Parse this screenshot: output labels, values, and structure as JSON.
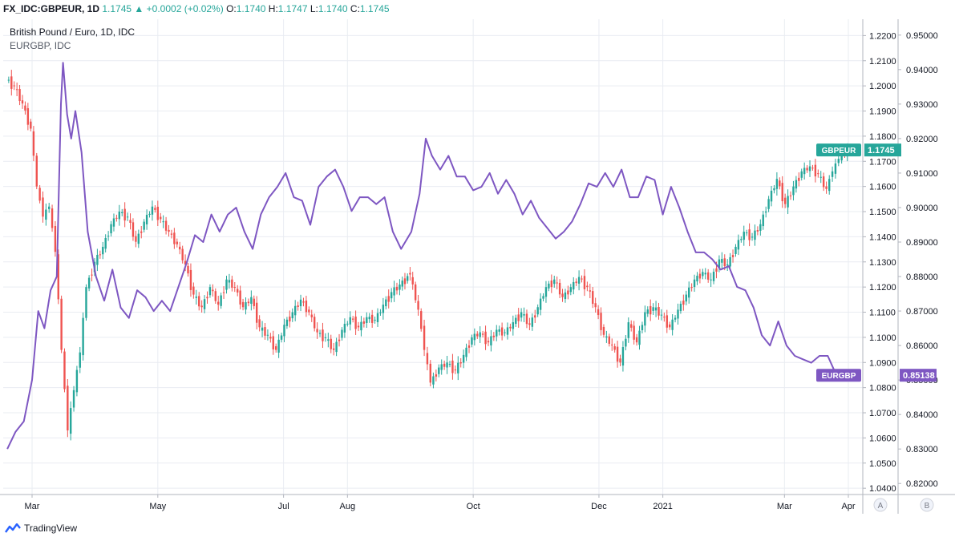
{
  "header": {
    "symbol": "FX_IDC:GBPEUR, 1D",
    "price": "1.1745",
    "arrow": "▲",
    "change": "+0.0002 (+0.02%)",
    "o_label": "O:",
    "o": "1.1740",
    "h_label": "H:",
    "h": "1.1747",
    "l_label": "L:",
    "l": "1.1740",
    "c_label": "C:",
    "c": "1.1745"
  },
  "legend": {
    "title": "British Pound / Euro, 1D, IDC",
    "overlay": "EURGBP, IDC"
  },
  "footer": {
    "brand": "TradingView"
  },
  "colors": {
    "up": "#26a69a",
    "down": "#ef5350",
    "overlay": "#7e57c2",
    "grid": "#e9ecf2",
    "axis": "#b2b5be"
  },
  "chart_data": {
    "type": "line",
    "x_labels": [
      {
        "label": "Mar",
        "date": "2020-03-01"
      },
      {
        "label": "May",
        "date": "2020-05-01"
      },
      {
        "label": "Jul",
        "date": "2020-07-01"
      },
      {
        "label": "Aug",
        "date": "2020-08-01"
      },
      {
        "label": "Oct",
        "date": "2020-10-01"
      },
      {
        "label": "Dec",
        "date": "2020-12-01"
      },
      {
        "label": "2021",
        "date": "2021-01-01"
      },
      {
        "label": "Mar",
        "date": "2021-03-01"
      },
      {
        "label": "Apr",
        "date": "2021-04-01"
      }
    ],
    "axis_a": {
      "ticks": [
        "1.2200",
        "1.2100",
        "1.2000",
        "1.1900",
        "1.1800",
        "1.1700",
        "1.1600",
        "1.1500",
        "1.1400",
        "1.1300",
        "1.1200",
        "1.1100",
        "1.1000",
        "1.0900",
        "1.0800",
        "1.0700",
        "1.0600",
        "1.0500",
        "1.0400"
      ],
      "ylim": [
        1.0375,
        1.2265
      ],
      "badge": "1.1745",
      "badge_label": "GBPEUR",
      "button": "A"
    },
    "axis_b": {
      "ticks": [
        "0.95000",
        "0.94000",
        "0.93000",
        "0.92000",
        "0.91000",
        "0.90000",
        "0.89000",
        "0.88000",
        "0.87000",
        "0.86000",
        "0.85000",
        "0.84000",
        "0.83000",
        "0.82000"
      ],
      "ylim": [
        0.8168,
        0.9546
      ],
      "badge": "0.85138",
      "badge_label": "EURGBP",
      "button": "B"
    },
    "series": [
      {
        "name": "GBPEUR",
        "kind": "candlestick",
        "axis": "A",
        "points": [
          [
            "2020-02-18",
            1.203
          ],
          [
            "2020-02-22",
            1.2
          ],
          [
            "2020-02-26",
            1.193
          ],
          [
            "2020-03-01",
            1.183
          ],
          [
            "2020-03-04",
            1.16
          ],
          [
            "2020-03-07",
            1.148
          ],
          [
            "2020-03-10",
            1.152
          ],
          [
            "2020-03-13",
            1.134
          ],
          [
            "2020-03-16",
            1.095
          ],
          [
            "2020-03-19",
            1.063
          ],
          [
            "2020-03-22",
            1.079
          ],
          [
            "2020-03-25",
            1.094
          ],
          [
            "2020-03-28",
            1.12
          ],
          [
            "2020-04-01",
            1.13
          ],
          [
            "2020-04-05",
            1.136
          ],
          [
            "2020-04-09",
            1.145
          ],
          [
            "2020-04-13",
            1.15
          ],
          [
            "2020-04-17",
            1.148
          ],
          [
            "2020-04-21",
            1.138
          ],
          [
            "2020-04-25",
            1.146
          ],
          [
            "2020-04-29",
            1.152
          ],
          [
            "2020-05-03",
            1.147
          ],
          [
            "2020-05-07",
            1.142
          ],
          [
            "2020-05-11",
            1.137
          ],
          [
            "2020-05-15",
            1.129
          ],
          [
            "2020-05-19",
            1.117
          ],
          [
            "2020-05-23",
            1.112
          ],
          [
            "2020-05-27",
            1.12
          ],
          [
            "2020-05-31",
            1.113
          ],
          [
            "2020-06-04",
            1.123
          ],
          [
            "2020-06-08",
            1.12
          ],
          [
            "2020-06-12",
            1.112
          ],
          [
            "2020-06-16",
            1.116
          ],
          [
            "2020-06-20",
            1.104
          ],
          [
            "2020-06-24",
            1.101
          ],
          [
            "2020-06-28",
            1.095
          ],
          [
            "2020-07-02",
            1.105
          ],
          [
            "2020-07-06",
            1.11
          ],
          [
            "2020-07-10",
            1.115
          ],
          [
            "2020-07-14",
            1.11
          ],
          [
            "2020-07-18",
            1.102
          ],
          [
            "2020-07-22",
            1.1
          ],
          [
            "2020-07-26",
            1.095
          ],
          [
            "2020-07-30",
            1.103
          ],
          [
            "2020-08-03",
            1.108
          ],
          [
            "2020-08-07",
            1.104
          ],
          [
            "2020-08-11",
            1.108
          ],
          [
            "2020-08-15",
            1.107
          ],
          [
            "2020-08-19",
            1.113
          ],
          [
            "2020-08-23",
            1.118
          ],
          [
            "2020-08-27",
            1.121
          ],
          [
            "2020-09-01",
            1.125
          ],
          [
            "2020-09-05",
            1.111
          ],
          [
            "2020-09-08",
            1.095
          ],
          [
            "2020-09-11",
            1.082
          ],
          [
            "2020-09-15",
            1.088
          ],
          [
            "2020-09-19",
            1.09
          ],
          [
            "2020-09-23",
            1.087
          ],
          [
            "2020-09-27",
            1.093
          ],
          [
            "2020-10-01",
            1.1
          ],
          [
            "2020-10-05",
            1.102
          ],
          [
            "2020-10-09",
            1.098
          ],
          [
            "2020-10-13",
            1.103
          ],
          [
            "2020-10-17",
            1.102
          ],
          [
            "2020-10-21",
            1.106
          ],
          [
            "2020-10-25",
            1.11
          ],
          [
            "2020-10-29",
            1.105
          ],
          [
            "2020-11-02",
            1.112
          ],
          [
            "2020-11-06",
            1.12
          ],
          [
            "2020-11-10",
            1.123
          ],
          [
            "2020-11-14",
            1.116
          ],
          [
            "2020-11-18",
            1.12
          ],
          [
            "2020-11-22",
            1.124
          ],
          [
            "2020-11-26",
            1.12
          ],
          [
            "2020-11-30",
            1.112
          ],
          [
            "2020-12-04",
            1.101
          ],
          [
            "2020-12-08",
            1.097
          ],
          [
            "2020-12-12",
            1.09
          ],
          [
            "2020-12-16",
            1.106
          ],
          [
            "2020-12-20",
            1.098
          ],
          [
            "2020-12-24",
            1.11
          ],
          [
            "2020-12-28",
            1.112
          ],
          [
            "2021-01-01",
            1.109
          ],
          [
            "2021-01-05",
            1.104
          ],
          [
            "2021-01-09",
            1.111
          ],
          [
            "2021-01-13",
            1.117
          ],
          [
            "2021-01-17",
            1.123
          ],
          [
            "2021-01-21",
            1.126
          ],
          [
            "2021-01-25",
            1.123
          ],
          [
            "2021-01-29",
            1.131
          ],
          [
            "2021-02-02",
            1.129
          ],
          [
            "2021-02-06",
            1.136
          ],
          [
            "2021-02-10",
            1.142
          ],
          [
            "2021-02-14",
            1.14
          ],
          [
            "2021-02-18",
            1.145
          ],
          [
            "2021-02-22",
            1.155
          ],
          [
            "2021-02-26",
            1.163
          ],
          [
            "2021-03-02",
            1.153
          ],
          [
            "2021-03-06",
            1.16
          ],
          [
            "2021-03-10",
            1.166
          ],
          [
            "2021-03-14",
            1.168
          ],
          [
            "2021-03-18",
            1.165
          ],
          [
            "2021-03-22",
            1.159
          ],
          [
            "2021-03-25",
            1.166
          ],
          [
            "2021-03-28",
            1.171
          ],
          [
            "2021-03-31",
            1.174
          ],
          [
            "2021-04-01",
            1.1745
          ]
        ]
      },
      {
        "name": "EURGBP",
        "kind": "line",
        "axis": "B",
        "points": [
          [
            "2020-02-18",
            0.83
          ],
          [
            "2020-02-22",
            0.835
          ],
          [
            "2020-02-26",
            0.838
          ],
          [
            "2020-03-01",
            0.85
          ],
          [
            "2020-03-04",
            0.87
          ],
          [
            "2020-03-07",
            0.865
          ],
          [
            "2020-03-10",
            0.876
          ],
          [
            "2020-03-13",
            0.88
          ],
          [
            "2020-03-15",
            0.93
          ],
          [
            "2020-03-16",
            0.942
          ],
          [
            "2020-03-18",
            0.927
          ],
          [
            "2020-03-20",
            0.92
          ],
          [
            "2020-03-22",
            0.928
          ],
          [
            "2020-03-25",
            0.916
          ],
          [
            "2020-03-28",
            0.893
          ],
          [
            "2020-04-01",
            0.88
          ],
          [
            "2020-04-05",
            0.873
          ],
          [
            "2020-04-09",
            0.882
          ],
          [
            "2020-04-13",
            0.871
          ],
          [
            "2020-04-17",
            0.868
          ],
          [
            "2020-04-21",
            0.876
          ],
          [
            "2020-04-25",
            0.874
          ],
          [
            "2020-04-29",
            0.87
          ],
          [
            "2020-05-03",
            0.873
          ],
          [
            "2020-05-07",
            0.87
          ],
          [
            "2020-05-11",
            0.877
          ],
          [
            "2020-05-15",
            0.884
          ],
          [
            "2020-05-19",
            0.892
          ],
          [
            "2020-05-23",
            0.89
          ],
          [
            "2020-05-27",
            0.898
          ],
          [
            "2020-05-31",
            0.893
          ],
          [
            "2020-06-04",
            0.898
          ],
          [
            "2020-06-08",
            0.9
          ],
          [
            "2020-06-12",
            0.893
          ],
          [
            "2020-06-16",
            0.888
          ],
          [
            "2020-06-20",
            0.898
          ],
          [
            "2020-06-24",
            0.903
          ],
          [
            "2020-06-28",
            0.906
          ],
          [
            "2020-07-02",
            0.91
          ],
          [
            "2020-07-06",
            0.903
          ],
          [
            "2020-07-10",
            0.902
          ],
          [
            "2020-07-14",
            0.895
          ],
          [
            "2020-07-18",
            0.906
          ],
          [
            "2020-07-22",
            0.909
          ],
          [
            "2020-07-26",
            0.911
          ],
          [
            "2020-07-30",
            0.906
          ],
          [
            "2020-08-03",
            0.899
          ],
          [
            "2020-08-07",
            0.903
          ],
          [
            "2020-08-11",
            0.903
          ],
          [
            "2020-08-15",
            0.901
          ],
          [
            "2020-08-19",
            0.903
          ],
          [
            "2020-08-23",
            0.893
          ],
          [
            "2020-08-27",
            0.888
          ],
          [
            "2020-09-01",
            0.893
          ],
          [
            "2020-09-05",
            0.904
          ],
          [
            "2020-09-08",
            0.92
          ],
          [
            "2020-09-11",
            0.915
          ],
          [
            "2020-09-15",
            0.911
          ],
          [
            "2020-09-19",
            0.915
          ],
          [
            "2020-09-23",
            0.909
          ],
          [
            "2020-09-27",
            0.909
          ],
          [
            "2020-10-01",
            0.905
          ],
          [
            "2020-10-05",
            0.906
          ],
          [
            "2020-10-09",
            0.91
          ],
          [
            "2020-10-13",
            0.904
          ],
          [
            "2020-10-17",
            0.908
          ],
          [
            "2020-10-21",
            0.904
          ],
          [
            "2020-10-25",
            0.898
          ],
          [
            "2020-10-29",
            0.902
          ],
          [
            "2020-11-02",
            0.897
          ],
          [
            "2020-11-06",
            0.894
          ],
          [
            "2020-11-10",
            0.891
          ],
          [
            "2020-11-14",
            0.893
          ],
          [
            "2020-11-18",
            0.896
          ],
          [
            "2020-11-22",
            0.901
          ],
          [
            "2020-11-26",
            0.907
          ],
          [
            "2020-11-30",
            0.906
          ],
          [
            "2020-12-04",
            0.91
          ],
          [
            "2020-12-08",
            0.906
          ],
          [
            "2020-12-12",
            0.911
          ],
          [
            "2020-12-16",
            0.903
          ],
          [
            "2020-12-20",
            0.903
          ],
          [
            "2020-12-24",
            0.909
          ],
          [
            "2020-12-28",
            0.908
          ],
          [
            "2021-01-01",
            0.898
          ],
          [
            "2021-01-05",
            0.906
          ],
          [
            "2021-01-09",
            0.9
          ],
          [
            "2021-01-13",
            0.893
          ],
          [
            "2021-01-17",
            0.887
          ],
          [
            "2021-01-21",
            0.887
          ],
          [
            "2021-01-25",
            0.885
          ],
          [
            "2021-01-29",
            0.882
          ],
          [
            "2021-02-02",
            0.883
          ],
          [
            "2021-02-06",
            0.877
          ],
          [
            "2021-02-10",
            0.876
          ],
          [
            "2021-02-14",
            0.871
          ],
          [
            "2021-02-18",
            0.863
          ],
          [
            "2021-02-22",
            0.86
          ],
          [
            "2021-02-26",
            0.867
          ],
          [
            "2021-03-02",
            0.86
          ],
          [
            "2021-03-06",
            0.857
          ],
          [
            "2021-03-10",
            0.856
          ],
          [
            "2021-03-14",
            0.855
          ],
          [
            "2021-03-18",
            0.857
          ],
          [
            "2021-03-22",
            0.857
          ],
          [
            "2021-03-25",
            0.853
          ],
          [
            "2021-03-28",
            0.852
          ],
          [
            "2021-04-01",
            0.85138
          ]
        ]
      }
    ],
    "grid": true
  }
}
